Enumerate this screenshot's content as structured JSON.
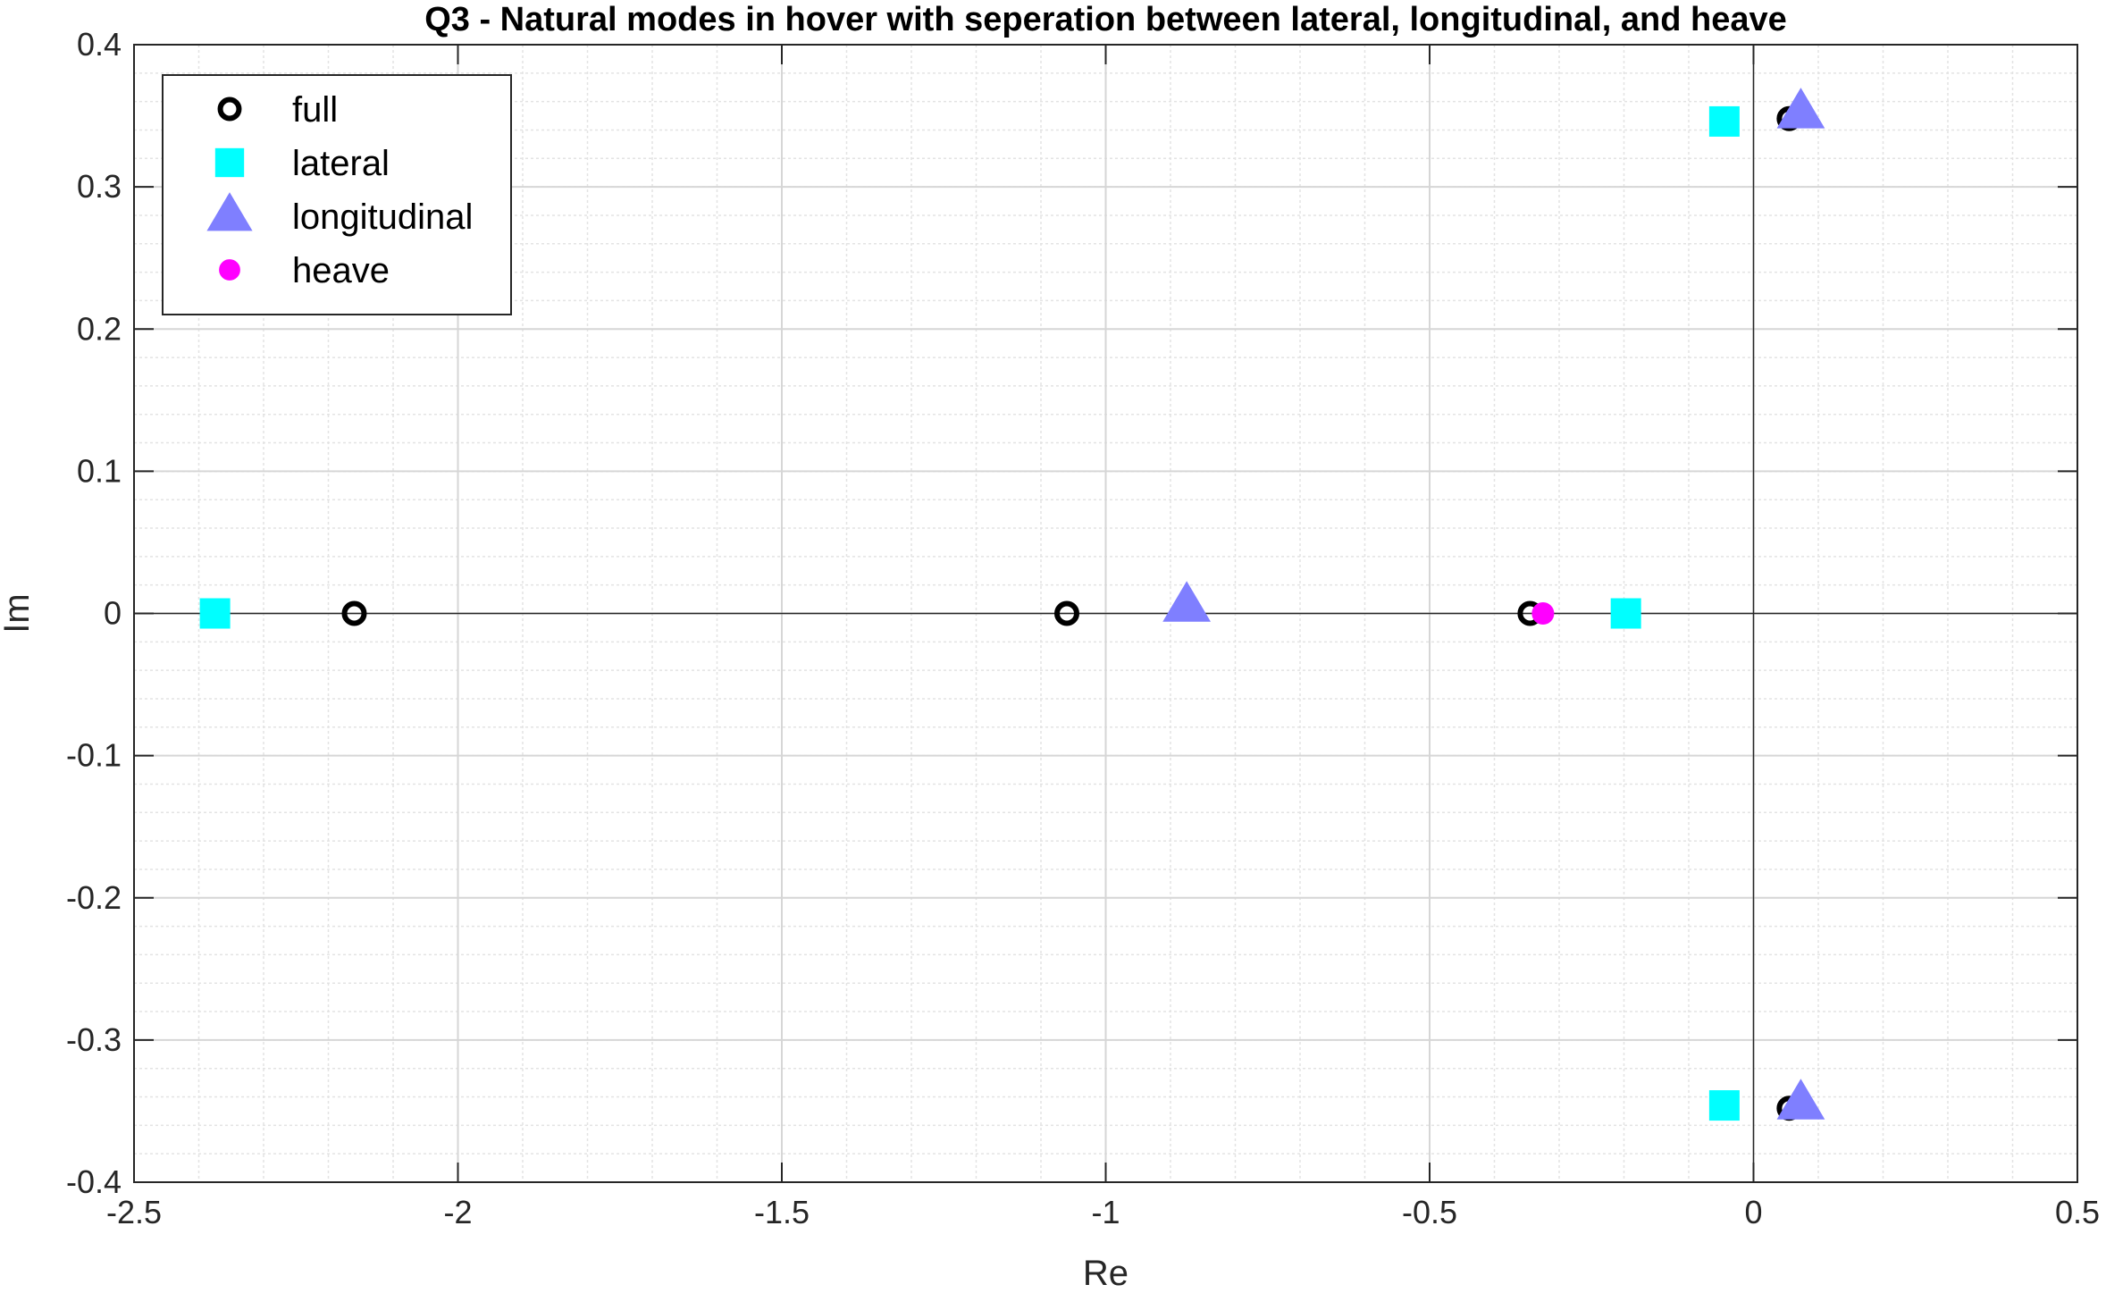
{
  "chart_data": {
    "type": "scatter",
    "title": "Q3 - Natural modes in hover with seperation between lateral, longitudinal, and heave",
    "xlabel": "Re",
    "ylabel": "Im",
    "xlim": [
      -2.5,
      0.5
    ],
    "ylim": [
      -0.4,
      0.4
    ],
    "xticks": [
      -2.5,
      -2,
      -1.5,
      -1,
      -0.5,
      0,
      0.5
    ],
    "xtick_labels": [
      "-2.5",
      "-2",
      "-1.5",
      "-1",
      "-0.5",
      "0",
      "0.5"
    ],
    "yticks": [
      -0.4,
      -0.3,
      -0.2,
      -0.1,
      0,
      0.1,
      0.2,
      0.3,
      0.4
    ],
    "ytick_labels": [
      "-0.4",
      "-0.3",
      "-0.2",
      "-0.1",
      "0",
      "0.1",
      "0.2",
      "0.3",
      "0.4"
    ],
    "grid": true,
    "minor_grid": true,
    "legend_position": "top-left",
    "series": [
      {
        "name": "full",
        "marker": "circle-open",
        "color": "#000000",
        "points": [
          [
            -2.16,
            0
          ],
          [
            -1.06,
            0
          ],
          [
            -0.345,
            0
          ],
          [
            -0.045,
            0.345
          ],
          [
            -0.045,
            -0.345
          ],
          [
            0.055,
            0.348
          ],
          [
            0.055,
            -0.348
          ]
        ]
      },
      {
        "name": "lateral",
        "marker": "square",
        "color": "#00FFFF",
        "points": [
          [
            -2.375,
            0
          ],
          [
            -0.197,
            0
          ],
          [
            -0.045,
            0.346
          ],
          [
            -0.045,
            -0.346
          ]
        ]
      },
      {
        "name": "longitudinal",
        "marker": "triangle",
        "color": "#7F7FFF",
        "points": [
          [
            -0.875,
            0.005
          ],
          [
            0.073,
            0.352
          ],
          [
            0.073,
            -0.345
          ]
        ]
      },
      {
        "name": "heave",
        "marker": "diamond",
        "color": "#FF00FF",
        "points": [
          [
            -0.325,
            0
          ]
        ]
      }
    ]
  }
}
